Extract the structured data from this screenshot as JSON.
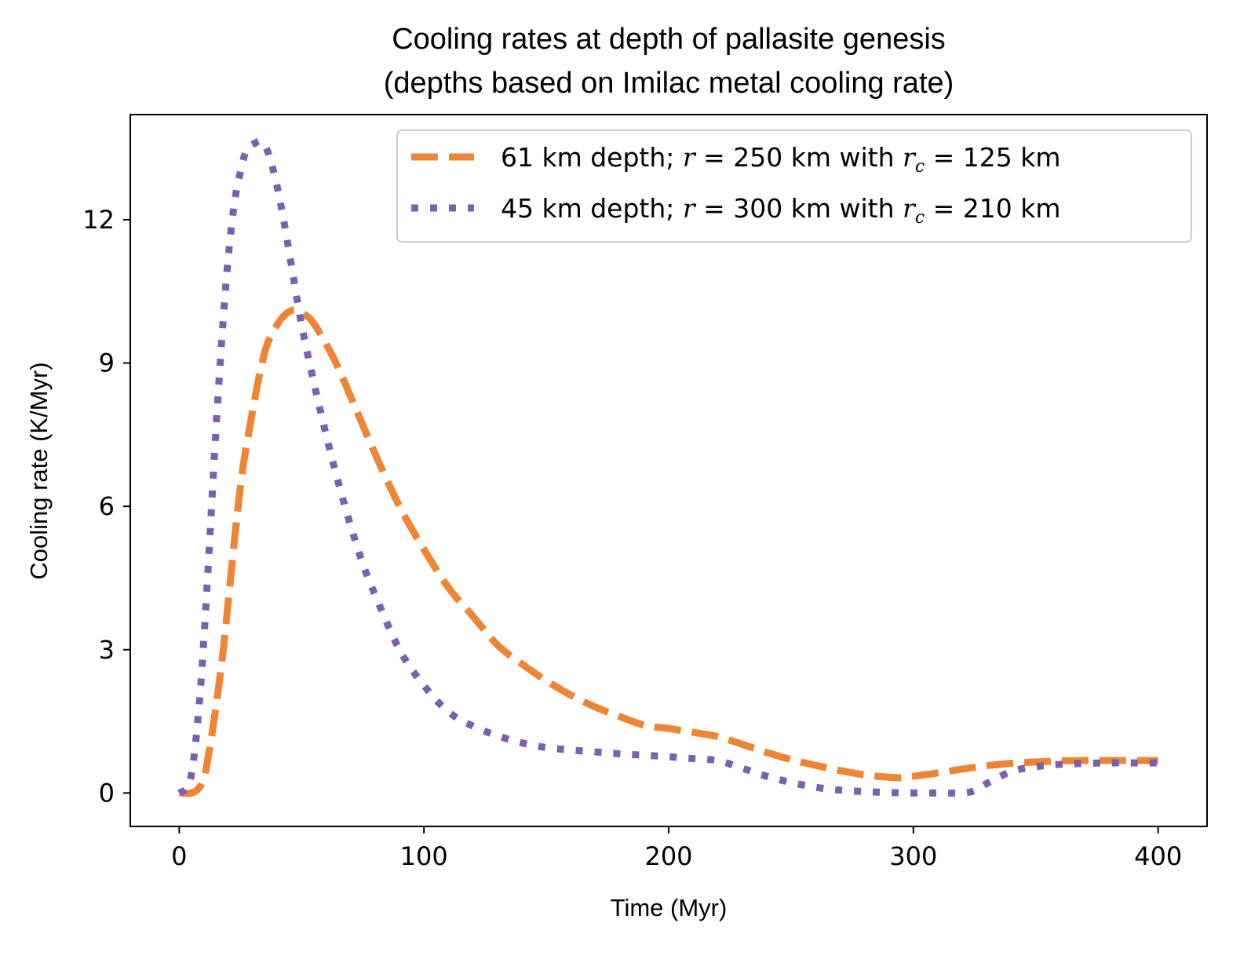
{
  "chart_data": {
    "type": "line",
    "title": "Cooling rates at depth of pallasite genesis",
    "subtitle": "(depths based on Imilac metal cooling rate)",
    "xlabel": "Time (Myr)",
    "ylabel": "Cooling rate (K/Myr)",
    "xlim": [
      -20,
      420
    ],
    "ylim": [
      -0.7,
      14.2
    ],
    "xticks": [
      "0",
      "100",
      "200",
      "300",
      "400"
    ],
    "yticks": [
      "0",
      "3",
      "6",
      "9",
      "12"
    ],
    "grid": false,
    "legend_position": "top-right",
    "series": [
      {
        "name": "61 km depth; r = 250 km with r_c = 125 km",
        "legend": {
          "pre": "61 km depth; ",
          "v1": "r",
          "eq1": " = 250 km with ",
          "v2": "r",
          "sub2": "c",
          "eq2": " = 125 km"
        },
        "color": "#ee8434",
        "style": "dashed",
        "x": [
          0,
          5,
          8,
          10,
          12,
          15,
          18,
          20,
          23,
          26,
          30,
          33,
          36,
          40,
          43,
          46,
          48,
          50,
          53,
          56,
          60,
          65,
          70,
          75,
          80,
          90,
          100,
          110,
          120,
          130,
          140,
          150,
          160,
          170,
          180,
          190,
          200,
          210,
          220,
          230,
          240,
          250,
          260,
          270,
          280,
          290,
          295,
          300,
          310,
          320,
          330,
          340,
          350,
          360,
          370,
          380,
          390,
          400
        ],
        "y": [
          0.0,
          0.0,
          0.1,
          0.3,
          0.8,
          1.8,
          3.0,
          4.0,
          5.5,
          6.8,
          8.0,
          8.8,
          9.4,
          9.8,
          10.0,
          10.1,
          10.1,
          10.05,
          9.95,
          9.75,
          9.4,
          8.9,
          8.3,
          7.7,
          7.1,
          6.0,
          5.1,
          4.3,
          3.7,
          3.1,
          2.7,
          2.35,
          2.05,
          1.8,
          1.6,
          1.42,
          1.35,
          1.27,
          1.18,
          1.02,
          0.85,
          0.7,
          0.58,
          0.47,
          0.38,
          0.33,
          0.32,
          0.35,
          0.42,
          0.5,
          0.57,
          0.62,
          0.65,
          0.67,
          0.68,
          0.68,
          0.68,
          0.68
        ]
      },
      {
        "name": "45 km depth; r = 300 km with r_c = 210 km",
        "legend": {
          "pre": "45 km depth; ",
          "v1": "r",
          "eq1": " = 300 km with ",
          "v2": "r",
          "sub2": "c",
          "eq2": " = 210 km"
        },
        "color": "#7b61ad",
        "style": "dotted",
        "x": [
          0,
          3,
          5,
          7,
          9,
          11,
          13,
          15,
          17,
          19,
          21,
          23,
          25,
          27,
          29,
          31,
          33,
          35,
          37,
          40,
          43,
          46,
          50,
          55,
          60,
          65,
          70,
          75,
          80,
          90,
          100,
          110,
          120,
          130,
          140,
          150,
          160,
          170,
          180,
          190,
          200,
          210,
          220,
          230,
          240,
          250,
          260,
          270,
          280,
          290,
          300,
          310,
          320,
          325,
          330,
          340,
          350,
          360,
          370,
          380,
          390,
          400
        ],
        "y": [
          0.0,
          0.1,
          0.4,
          1.2,
          2.4,
          4.0,
          5.8,
          7.6,
          9.2,
          10.6,
          11.7,
          12.5,
          13.0,
          13.4,
          13.55,
          13.6,
          13.65,
          13.55,
          13.3,
          12.7,
          11.9,
          11.0,
          9.8,
          8.6,
          7.5,
          6.5,
          5.6,
          4.8,
          4.15,
          3.0,
          2.25,
          1.7,
          1.4,
          1.2,
          1.05,
          0.95,
          0.9,
          0.86,
          0.82,
          0.79,
          0.76,
          0.72,
          0.68,
          0.52,
          0.35,
          0.22,
          0.12,
          0.06,
          0.03,
          0.01,
          0.0,
          0.0,
          0.0,
          0.05,
          0.2,
          0.45,
          0.55,
          0.6,
          0.62,
          0.63,
          0.63,
          0.63
        ]
      }
    ]
  }
}
